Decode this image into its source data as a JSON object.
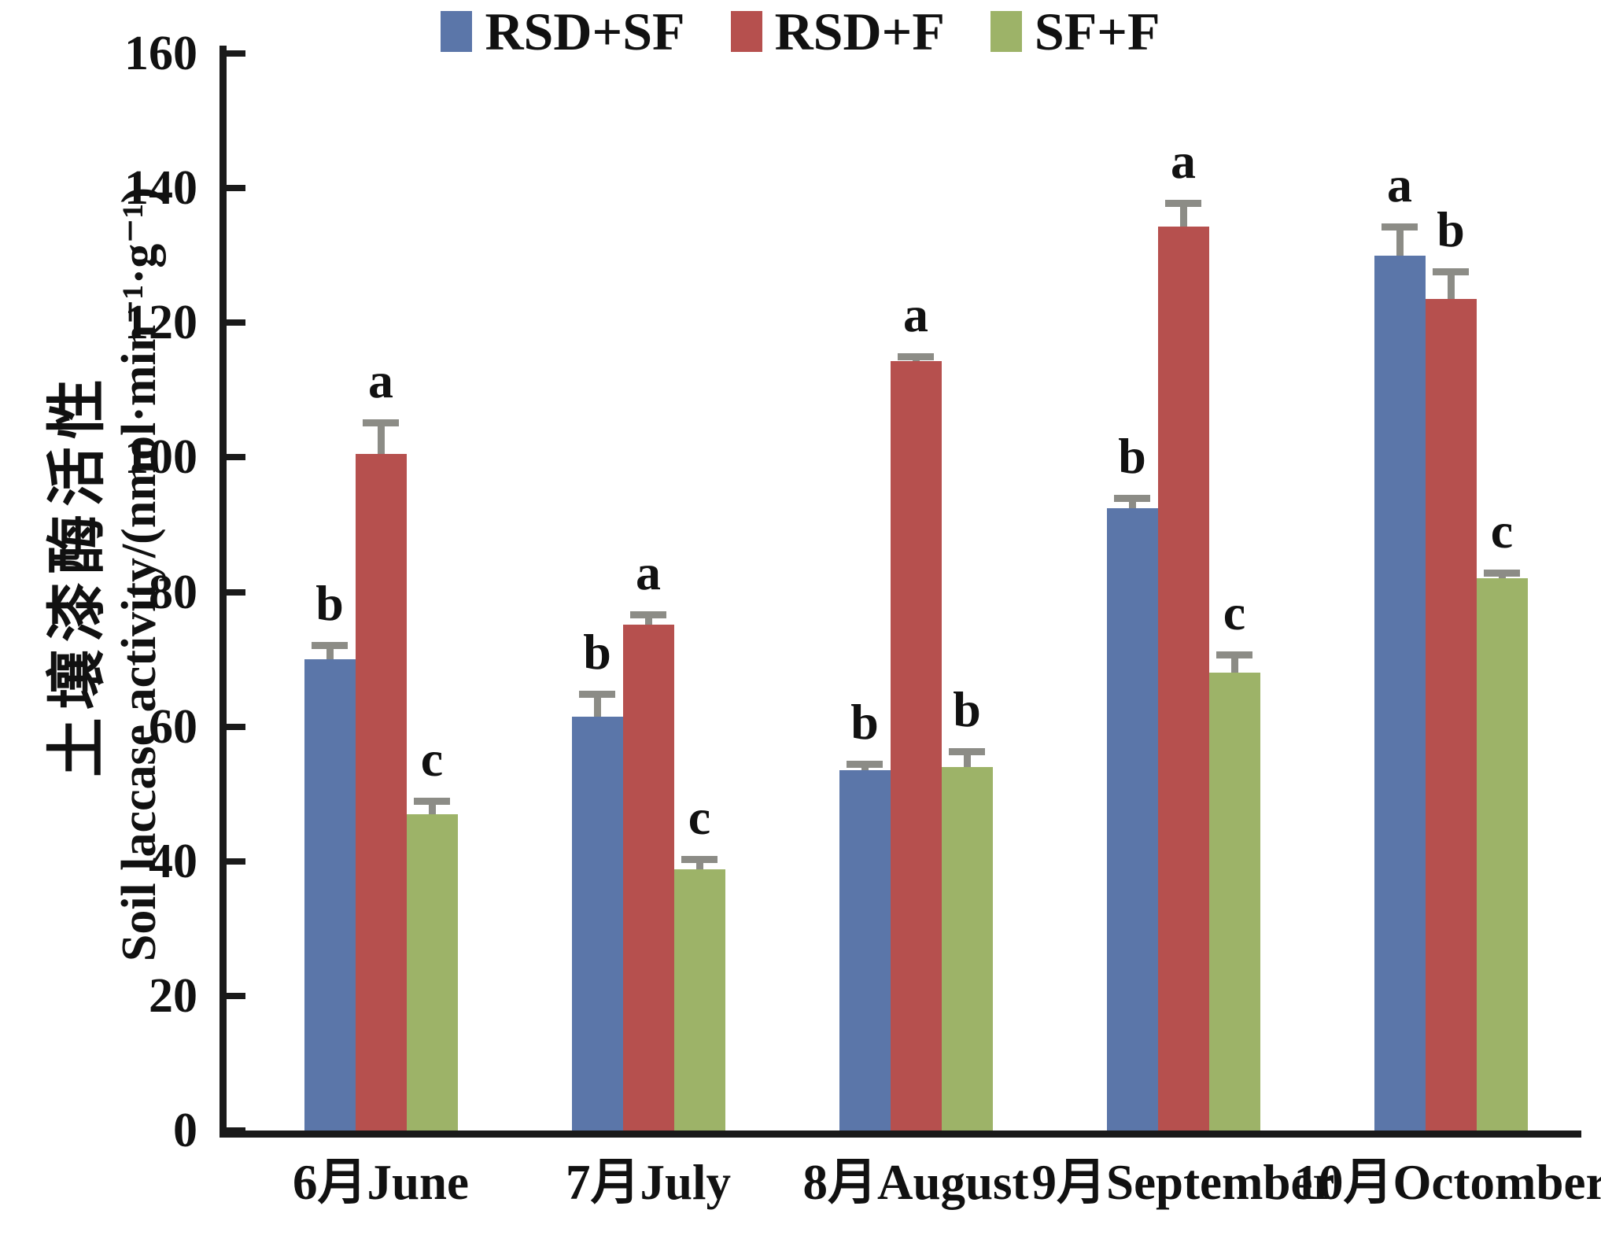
{
  "chart_data": {
    "type": "bar",
    "title": "",
    "categories": [
      "6月June",
      "7月July",
      "8月August",
      "9月September",
      "10月Octomber"
    ],
    "series": [
      {
        "name": "RSD+SF",
        "color": "#5B76A9",
        "values": [
          70.0,
          61.5,
          53.5,
          92.5,
          130.0
        ],
        "errors": [
          2.0,
          3.2,
          0.8,
          1.3,
          4.2
        ],
        "sig_letters": [
          "b",
          "b",
          "b",
          "b",
          "a"
        ]
      },
      {
        "name": "RSD+F",
        "color": "#B6504E",
        "values": [
          100.5,
          75.2,
          114.3,
          134.3,
          123.5
        ],
        "errors": [
          4.6,
          1.3,
          0.6,
          3.4,
          4.0
        ],
        "sig_letters": [
          "a",
          "a",
          "a",
          "a",
          "b"
        ]
      },
      {
        "name": "SF+F",
        "color": "#9DB368",
        "values": [
          47.0,
          38.8,
          54.0,
          68.0,
          82.0
        ],
        "errors": [
          1.8,
          1.4,
          2.2,
          2.6,
          0.8
        ],
        "sig_letters": [
          "c",
          "c",
          "b",
          "c",
          "c"
        ]
      }
    ],
    "ylabel_zh": "土壤漆酶活性",
    "ylabel_en": "Soil laccase activity/(nmol·min⁻¹·g⁻¹)",
    "xlabel": "",
    "ylim": [
      0,
      160
    ],
    "ytick_step": 20,
    "yticks": [
      0,
      20,
      40,
      60,
      80,
      100,
      120,
      140,
      160
    ],
    "grid": false,
    "legend_position": "top",
    "error_bar_color": "#8C8C86",
    "axis_color": "#1A1A1A"
  }
}
